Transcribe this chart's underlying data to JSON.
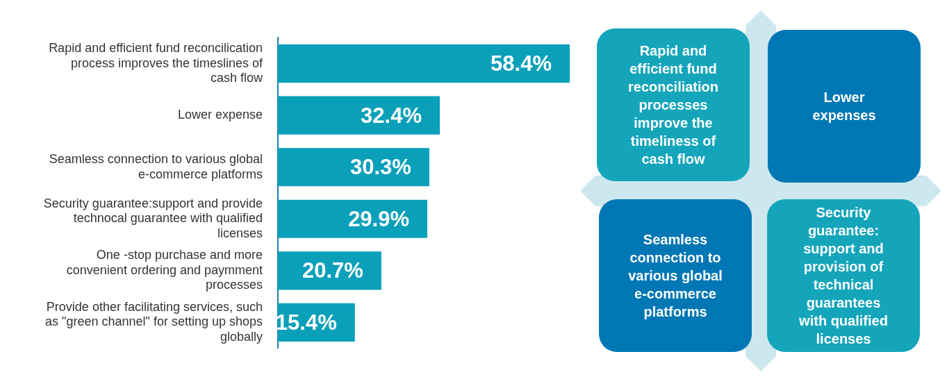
{
  "chart_data": [
    {
      "type": "bar",
      "orientation": "horizontal",
      "categories": [
        "Rapid and efficient fund reconcilication process improves the timeslines of cash flow",
        "Lower expense",
        "Seamless connection to various global e-commerce platforms",
        "Security guarantee:support and provide technocal guarantee with qualified licenses",
        "One -stop purchase and more convenient ordering and paymment processes",
        "Provide other facilitating services, such as \"green channel\" for setting up shops globally"
      ],
      "values": [
        58.4,
        32.4,
        30.3,
        29.9,
        20.7,
        15.4
      ],
      "value_labels": [
        "58.4%",
        "32.4%",
        "30.3%",
        "29.9%",
        "20.7%",
        "15.4%"
      ],
      "color": "#0aa0b9",
      "legend": false,
      "tick_labels": "y"
    },
    {
      "type": "other",
      "annotations": [
        "Rapid and efficient fund reconciliation processes improve the timeliness of cash flow",
        "Lower expenses",
        "Seamless connection to various global e-commerce platforms",
        "Security guarantee: support and provision of technical guarantees with qualified licenses"
      ]
    }
  ]
}
